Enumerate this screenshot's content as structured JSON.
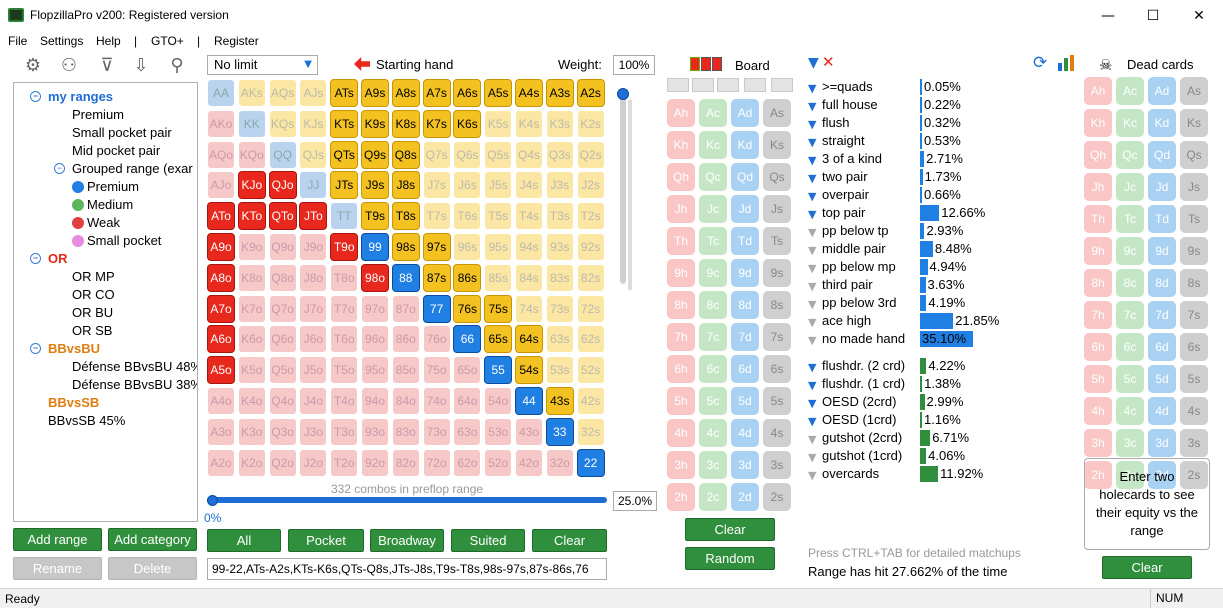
{
  "window": {
    "title": "FlopzillaPro v200: Registered version",
    "min": "—",
    "max": "☐",
    "close": "✕"
  },
  "menu": [
    "File",
    "Settings",
    "Help",
    "|",
    "GTO+",
    "|",
    "Register"
  ],
  "tree": {
    "my_ranges": "my ranges",
    "premium": "Premium",
    "small_pair": "Small pocket pair",
    "mid_pair": "Mid pocket pair",
    "grouped": "Grouped range (exar",
    "g_premium": "Premium",
    "g_medium": "Medium",
    "g_weak": "Weak",
    "g_small": "Small pocket",
    "or": "OR",
    "or_mp": "OR MP",
    "or_co": "OR CO",
    "or_bu": "OR BU",
    "or_sb": "OR SB",
    "bbvsbu": "BBvsBU",
    "def48": "Défense BBvsBU 48%",
    "def38": "Défense BBvsBU 38%",
    "bbvssb": "BBvsSB",
    "bbvssb45": "BBvsSB 45%"
  },
  "left_buttons": {
    "add_range": "Add range",
    "add_category": "Add category",
    "rename": "Rename",
    "delete": "Delete"
  },
  "range": {
    "limit": "No limit",
    "starting_hand": "Starting hand",
    "weight_label": "Weight:",
    "weight": "100%",
    "combos": "332 combos in preflop range",
    "slider_min": "0%",
    "slider_value": "25.0%",
    "range_text": "99-22,ATs-A2s,KTs-K6s,QTs-Q8s,JTs-J8s,T9s-T8s,98s-97s,87s-86s,76"
  },
  "range_buttons": {
    "all": "All",
    "pocket": "Pocket",
    "broadway": "Broadway",
    "suited": "Suited",
    "clear": "Clear"
  },
  "grid_selected": [
    "ATs",
    "A9s",
    "A8s",
    "A7s",
    "A6s",
    "A5s",
    "A4s",
    "A3s",
    "A2s",
    "KTs",
    "K9s",
    "K8s",
    "K7s",
    "K6s",
    "QTs",
    "Q9s",
    "Q8s",
    "JTs",
    "J9s",
    "J8s",
    "T9s",
    "T8s",
    "98s",
    "97s",
    "87s",
    "86s",
    "76s",
    "75s",
    "65s",
    "64s",
    "54s",
    "43s",
    "99",
    "88",
    "77",
    "66",
    "55",
    "44",
    "33",
    "22",
    "KJo",
    "QJo",
    "ATo",
    "KTo",
    "QTo",
    "JTo",
    "A9o",
    "T9o",
    "A8o",
    "98o",
    "A7o",
    "A6o",
    "A5o"
  ],
  "board": {
    "label": "Board",
    "clear": "Clear",
    "random": "Random"
  },
  "stats": {
    "made": [
      {
        "label": ">=quads",
        "value": "0.05%",
        "pct": 0.05,
        "active": true
      },
      {
        "label": "full house",
        "value": "0.22%",
        "pct": 0.22,
        "active": true
      },
      {
        "label": "flush",
        "value": "0.32%",
        "pct": 0.32,
        "active": true
      },
      {
        "label": "straight",
        "value": "0.53%",
        "pct": 0.53,
        "active": true
      },
      {
        "label": "3 of a kind",
        "value": "2.71%",
        "pct": 2.71,
        "active": true
      },
      {
        "label": "two pair",
        "value": "1.73%",
        "pct": 1.73,
        "active": true
      },
      {
        "label": "overpair",
        "value": "0.66%",
        "pct": 0.66,
        "active": true
      },
      {
        "label": "top pair",
        "value": "12.66%",
        "pct": 12.66,
        "active": true
      },
      {
        "label": "pp below tp",
        "value": "2.93%",
        "pct": 2.93,
        "active": false
      },
      {
        "label": "middle pair",
        "value": "8.48%",
        "pct": 8.48,
        "active": false
      },
      {
        "label": "pp below mp",
        "value": "4.94%",
        "pct": 4.94,
        "active": false
      },
      {
        "label": "third pair",
        "value": "3.63%",
        "pct": 3.63,
        "active": false
      },
      {
        "label": "pp below 3rd",
        "value": "4.19%",
        "pct": 4.19,
        "active": false
      },
      {
        "label": "ace high",
        "value": "21.85%",
        "pct": 21.85,
        "active": false
      },
      {
        "label": "no made hand",
        "value": "35.10%",
        "pct": 35.1,
        "active": false
      }
    ],
    "draws": [
      {
        "label": "flushdr. (2 crd)",
        "value": "4.22%",
        "pct": 4.22,
        "active": true
      },
      {
        "label": "flushdr. (1 crd)",
        "value": "1.38%",
        "pct": 1.38,
        "active": true
      },
      {
        "label": "OESD (2crd)",
        "value": "2.99%",
        "pct": 2.99,
        "active": true
      },
      {
        "label": "OESD (1crd)",
        "value": "1.16%",
        "pct": 1.16,
        "active": true
      },
      {
        "label": "gutshot (2crd)",
        "value": "6.71%",
        "pct": 6.71,
        "active": false
      },
      {
        "label": "gutshot (1crd)",
        "value": "4.06%",
        "pct": 4.06,
        "active": false
      },
      {
        "label": "overcards",
        "value": "11.92%",
        "pct": 11.92,
        "active": false
      }
    ],
    "hint": "Press CTRL+TAB for detailed matchups",
    "range_hit": "Range has hit 27.662% of the time"
  },
  "dead": {
    "label": "Dead cards",
    "equity_text": "Enter two holecards to see their equity vs the range",
    "clear": "Clear"
  },
  "colors": {
    "green": "#2f8f3c",
    "blue": "#1f7fe3",
    "gold": "#f3c221",
    "red": "#e8271d"
  },
  "status": {
    "left": "Ready",
    "right": "NUM"
  }
}
